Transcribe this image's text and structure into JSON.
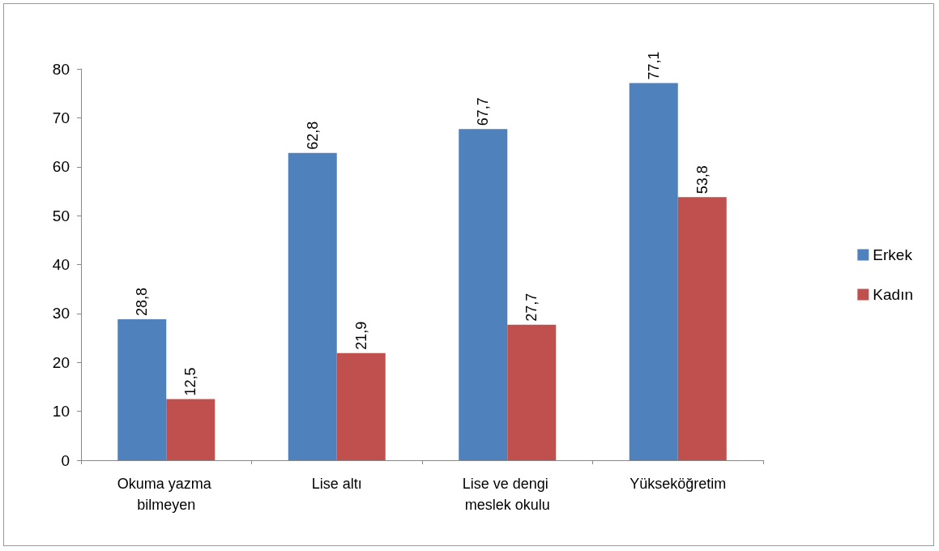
{
  "chart_data": {
    "type": "bar",
    "categories": [
      "Okuma yazma bilmeyen",
      "Lise altı",
      "Lise ve dengi meslek okulu",
      "Yükseköğretim"
    ],
    "series": [
      {
        "name": "Erkek",
        "color": "#4f81bd",
        "values": [
          28.8,
          62.8,
          67.7,
          77.1
        ],
        "value_labels": [
          "28,8",
          "62,8",
          "67,7",
          "77,1"
        ]
      },
      {
        "name": "Kadın",
        "color": "#c0504d",
        "values": [
          12.5,
          21.9,
          27.7,
          53.8
        ],
        "value_labels": [
          "12,5",
          "21,9",
          "27,7",
          "53,8"
        ]
      }
    ],
    "ylim": [
      0,
      80
    ],
    "yticks": [
      0,
      10,
      20,
      30,
      40,
      50,
      60,
      70,
      80
    ],
    "grid": false,
    "legend": "right"
  }
}
